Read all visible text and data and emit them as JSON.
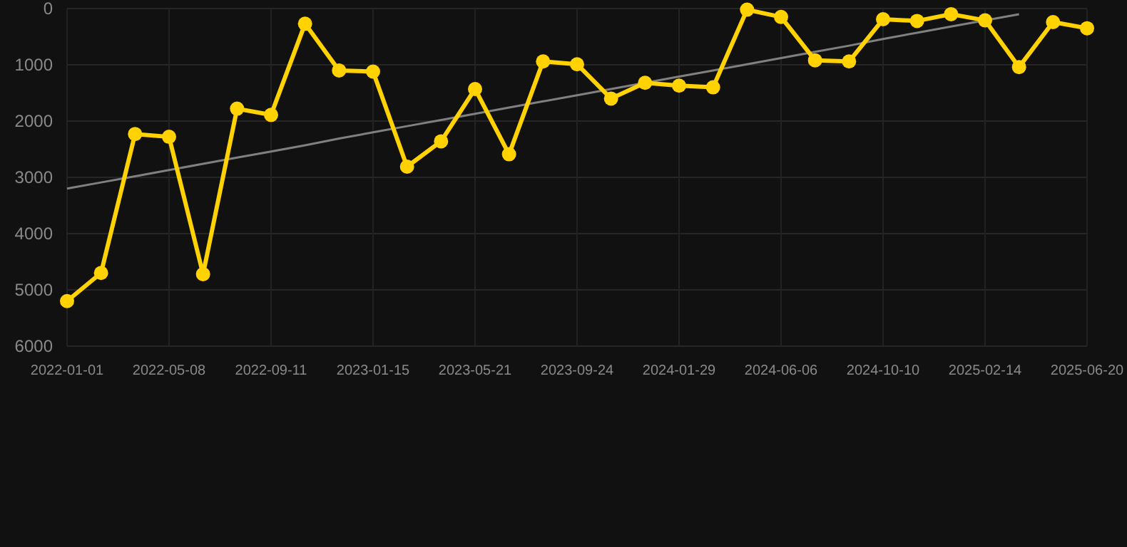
{
  "chart_data": {
    "type": "line",
    "categories": [
      "2022-01-01",
      null,
      null,
      "2022-05-08",
      null,
      null,
      "2022-09-11",
      null,
      null,
      "2023-01-15",
      null,
      null,
      "2023-05-21",
      null,
      null,
      "2023-09-24",
      null,
      null,
      "2024-01-29",
      null,
      null,
      "2024-06-06",
      null,
      null,
      "2024-10-10",
      null,
      null,
      "2025-02-14",
      null,
      null,
      "2025-06-20"
    ],
    "series": [
      {
        "color": "#ffd200",
        "marker": "circle",
        "values": [
          5200,
          4700,
          2230,
          2280,
          4720,
          1780,
          1890,
          270,
          1100,
          1120,
          2810,
          2360,
          1430,
          2590,
          940,
          990,
          1600,
          1320,
          1370,
          1400,
          20,
          150,
          920,
          940,
          190,
          220,
          100,
          210,
          1040,
          240,
          350
        ]
      },
      {
        "color": "#808080",
        "marker": "none",
        "values": [
          3200,
          3090,
          2980,
          2870,
          2760,
          2650,
          2540,
          2430,
          2310,
          2200,
          2090,
          1980,
          1870,
          1760,
          1650,
          1540,
          1430,
          null,
          1210,
          1100,
          990,
          880,
          770,
          660,
          540,
          430,
          320,
          null,
          100,
          null,
          null
        ]
      }
    ],
    "ylim": [
      6000,
      0
    ],
    "yticks": [
      0,
      1000,
      2000,
      3000,
      4000,
      5000,
      6000
    ],
    "grid": true
  }
}
